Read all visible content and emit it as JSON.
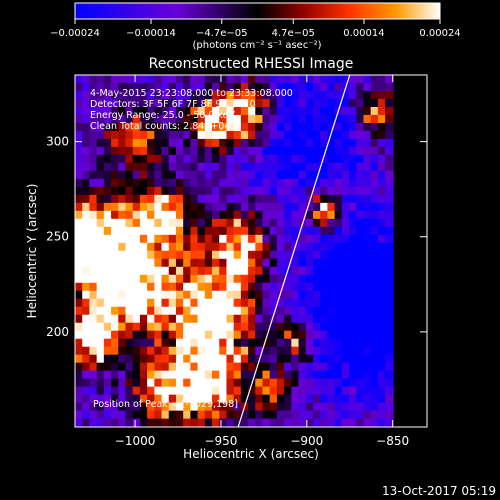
{
  "chart_data": {
    "type": "heatmap",
    "title": "Reconstructed RHESSI Image",
    "xlabel": "Heliocentric X (arcsec)",
    "ylabel": "Heliocentric Y (arcsec)",
    "xlim": [
      -1035,
      -830
    ],
    "ylim": [
      150,
      335
    ],
    "x_ticks": [
      {
        "value": -1000,
        "label": "−1000"
      },
      {
        "value": -950,
        "label": "−950"
      },
      {
        "value": -900,
        "label": "−900"
      },
      {
        "value": -850,
        "label": "−850"
      }
    ],
    "y_ticks": [
      {
        "value": 200,
        "label": "200"
      },
      {
        "value": 250,
        "label": "250"
      },
      {
        "value": 300,
        "label": "300"
      }
    ],
    "colorbar": {
      "range": [
        -0.00024,
        0.00024
      ],
      "ticks": [
        {
          "value": -0.00024,
          "label": "−0.00024"
        },
        {
          "value": -0.00014,
          "label": "−0.00014"
        },
        {
          "value": -4.7e-05,
          "label": "−4.7e−05"
        },
        {
          "value": 4.7e-05,
          "label": "4.7e−05"
        },
        {
          "value": 0.00014,
          "label": "0.00014"
        },
        {
          "value": 0.00024,
          "label": "0.00024"
        }
      ],
      "unit_label": "(photons cm⁻² s⁻¹ asec⁻²)",
      "colors": [
        "#0000ff",
        "#6a00d8",
        "#000000",
        "#8b0000",
        "#ff3000",
        "#ff9a00",
        "#ffffff"
      ]
    },
    "annotations": [
      "4-May-2015 23:23:08.000 to 23:33:08.000",
      "Detectors: 3F 5F 6F 7F 8F 9F, Att 0",
      "Energy Range: 25.0 - 50.0 keV",
      "Clean    Total counts: 2.84E+04"
    ],
    "peak_label": "Position of Peak = [-1029,198]",
    "limb_line": {
      "x1": -940,
      "y1": 150,
      "x2": -875,
      "y2": 335
    },
    "bright_regions": [
      {
        "x": -1025,
        "y": 245,
        "sigma": 16,
        "amp": 1.25
      },
      {
        "x": -1000,
        "y": 225,
        "sigma": 18,
        "amp": 1.0
      },
      {
        "x": -985,
        "y": 260,
        "sigma": 12,
        "amp": 0.75
      },
      {
        "x": -955,
        "y": 210,
        "sigma": 16,
        "amp": 1.0
      },
      {
        "x": -960,
        "y": 175,
        "sigma": 15,
        "amp": 0.95
      },
      {
        "x": -940,
        "y": 245,
        "sigma": 12,
        "amp": 0.75
      },
      {
        "x": -1025,
        "y": 198,
        "sigma": 9,
        "amp": 1.3
      },
      {
        "x": -985,
        "y": 168,
        "sigma": 12,
        "amp": 0.55
      },
      {
        "x": -955,
        "y": 310,
        "sigma": 9,
        "amp": 0.9
      },
      {
        "x": -935,
        "y": 315,
        "sigma": 10,
        "amp": 0.85
      },
      {
        "x": -1000,
        "y": 300,
        "sigma": 11,
        "amp": 0.55
      },
      {
        "x": -890,
        "y": 265,
        "sigma": 7,
        "amp": 0.7
      },
      {
        "x": -905,
        "y": 195,
        "sigma": 8,
        "amp": 0.55
      },
      {
        "x": -860,
        "y": 315,
        "sigma": 8,
        "amp": 0.6
      },
      {
        "x": -920,
        "y": 170,
        "sigma": 9,
        "amp": 0.5
      }
    ],
    "dim_regions": [
      {
        "x": -860,
        "y": 215,
        "sigma": 28,
        "amp": 0.75
      },
      {
        "x": -900,
        "y": 300,
        "sigma": 22,
        "amp": 0.4
      }
    ]
  },
  "footer": {
    "date": "13-Oct-2017 05:19"
  }
}
